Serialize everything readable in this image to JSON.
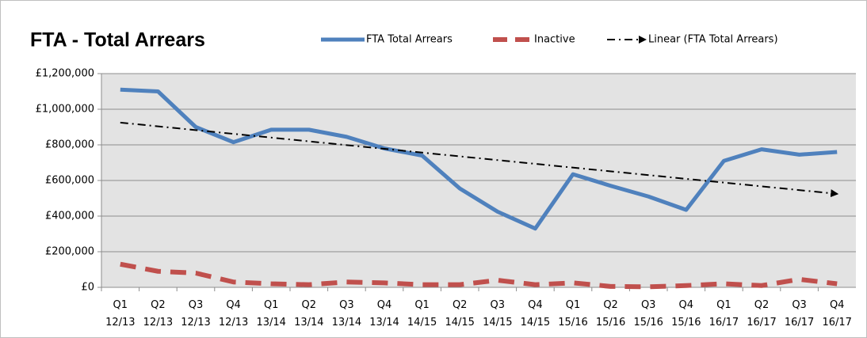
{
  "chart_data": {
    "type": "line",
    "title": "FTA - Total Arrears",
    "categories": [
      "Q1 12/13",
      "Q2 12/13",
      "Q3 12/13",
      "Q4 12/13",
      "Q1 13/14",
      "Q2 13/14",
      "Q3 13/14",
      "Q4 13/14",
      "Q1 14/15",
      "Q2 14/15",
      "Q3 14/15",
      "Q4 14/15",
      "Q1 15/16",
      "Q2 15/16",
      "Q3 15/16",
      "Q4 15/16",
      "Q1 16/17",
      "Q2 16/17",
      "Q3 16/17",
      "Q4 16/17"
    ],
    "series": [
      {
        "name": "FTA Total Arrears",
        "color": "#4f81bd",
        "style": "solid",
        "values": [
          1110000,
          1100000,
          900000,
          815000,
          885000,
          885000,
          845000,
          780000,
          740000,
          555000,
          425000,
          330000,
          635000,
          570000,
          510000,
          435000,
          710000,
          775000,
          745000,
          760000
        ]
      },
      {
        "name": "Inactive",
        "color": "#c0504d",
        "style": "dashed",
        "values": [
          130000,
          90000,
          80000,
          30000,
          20000,
          15000,
          30000,
          25000,
          15000,
          15000,
          40000,
          15000,
          25000,
          5000,
          3000,
          10000,
          20000,
          10000,
          45000,
          20000
        ]
      }
    ],
    "trendline": {
      "name": "Linear (FTA Total Arrears)",
      "color": "#000000",
      "start": 925000,
      "end": 525000
    },
    "ylim": [
      0,
      1200000
    ],
    "yticks": [
      {
        "value": 0,
        "label": "£0"
      },
      {
        "value": 200000,
        "label": "£200,000"
      },
      {
        "value": 400000,
        "label": "£400,000"
      },
      {
        "value": 600000,
        "label": "£600,000"
      },
      {
        "value": 800000,
        "label": "£800,000"
      },
      {
        "value": 1000000,
        "label": "£1,000,000"
      },
      {
        "value": 1200000,
        "label": "£1,200,000"
      }
    ],
    "grid": true,
    "legend": "top"
  }
}
